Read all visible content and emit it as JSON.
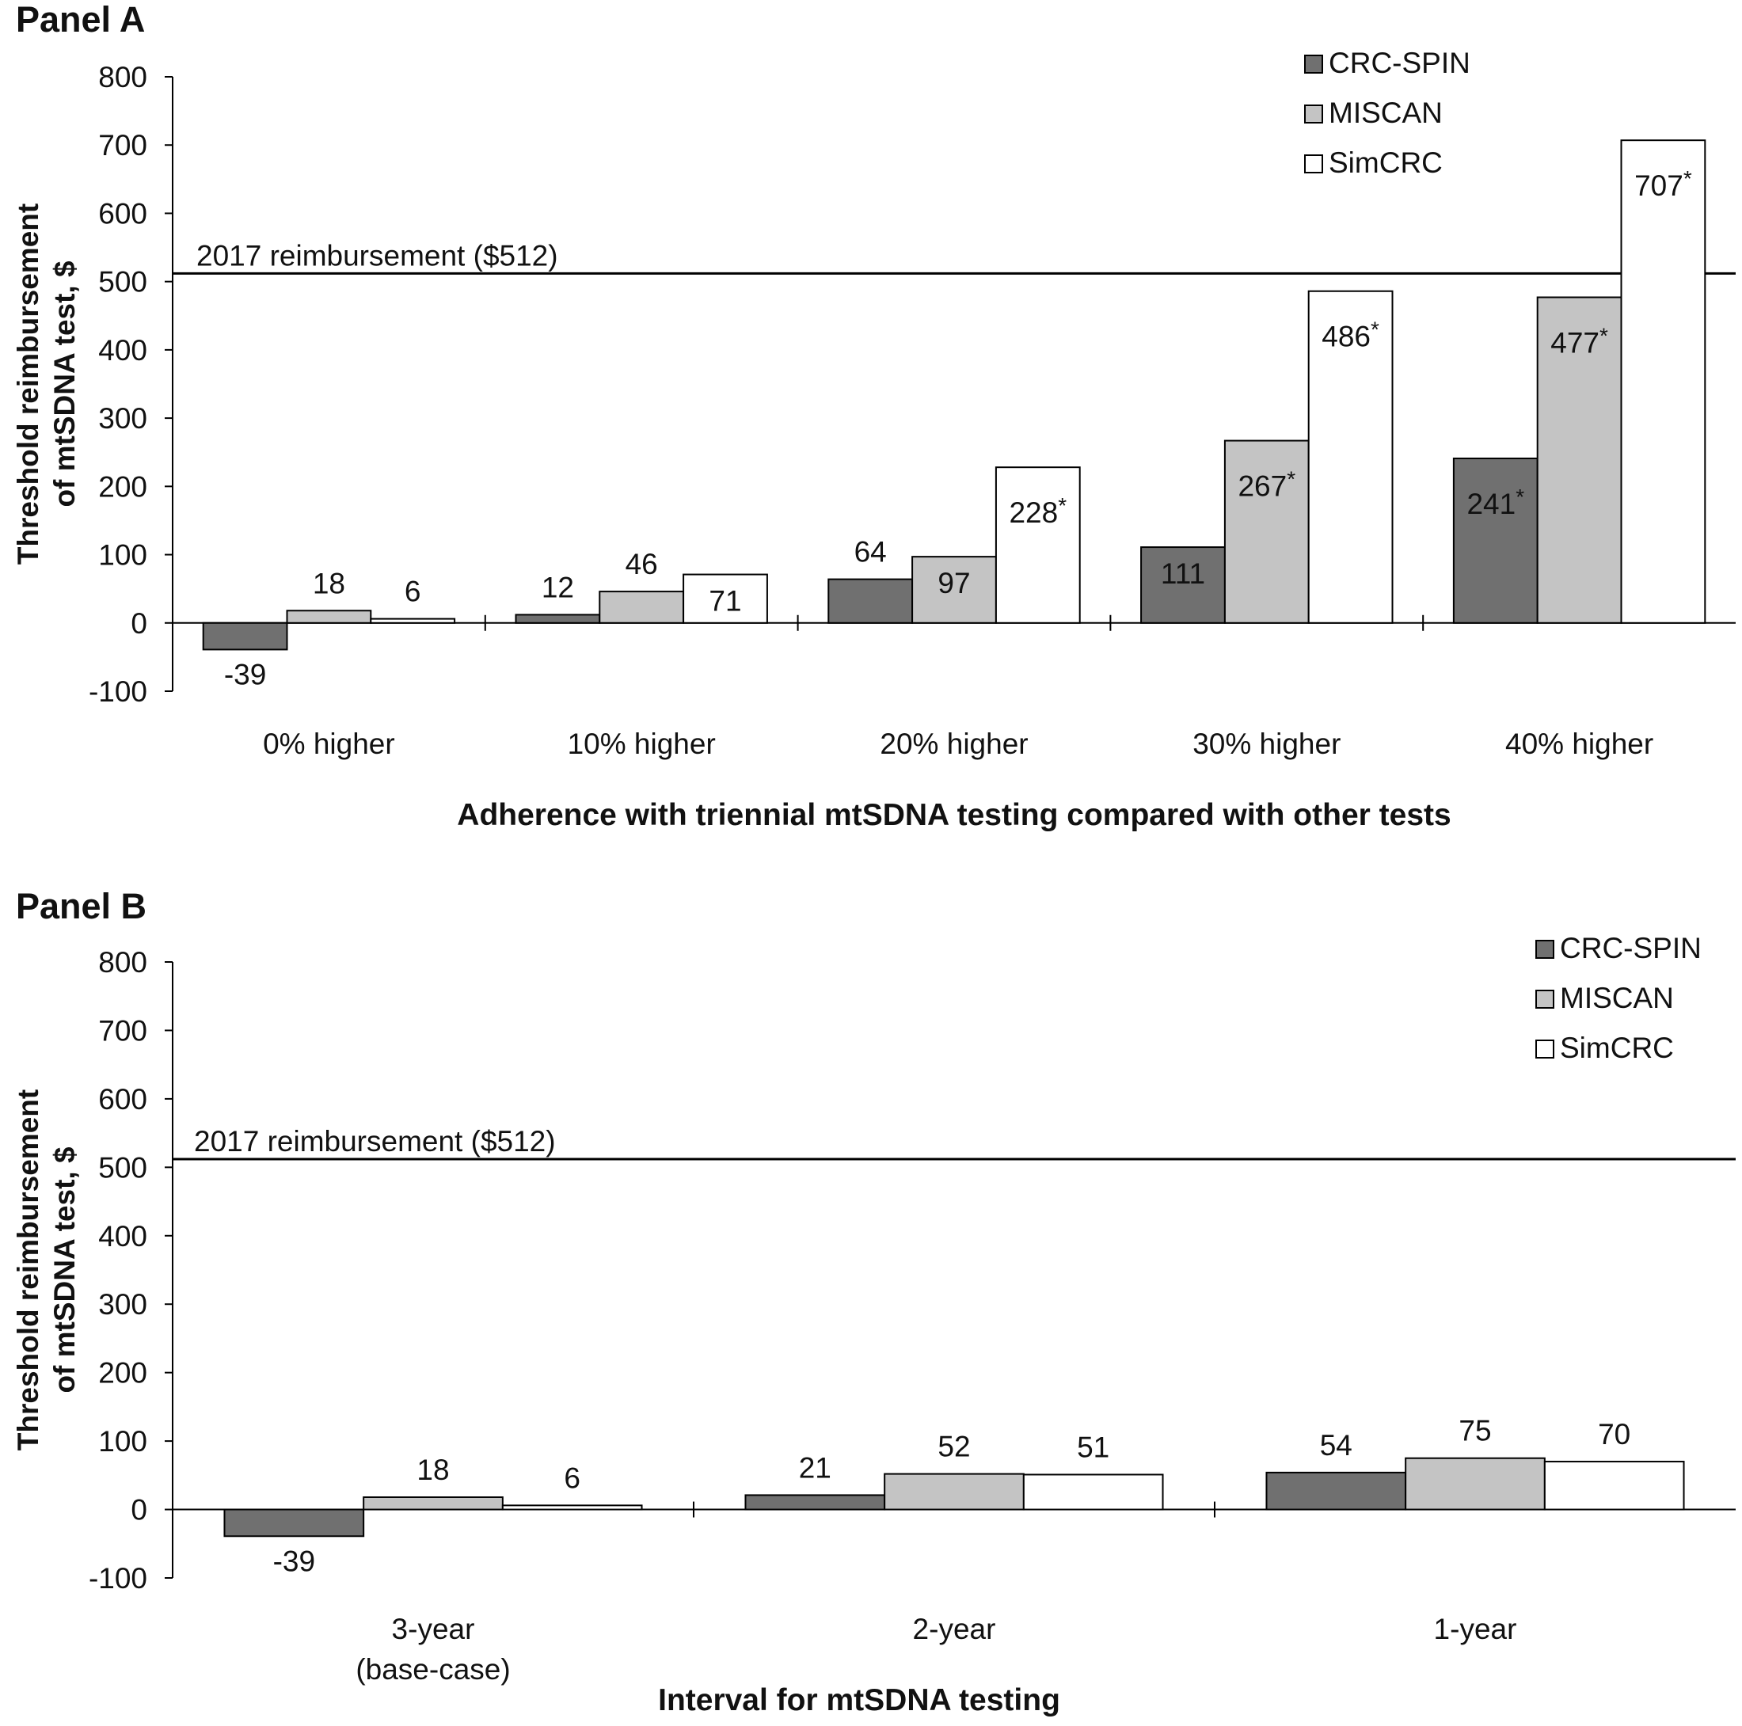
{
  "colors": {
    "CRC-SPIN": "#707070",
    "MISCAN": "#c4c4c4",
    "SimCRC": "#ffffff",
    "stroke": "#000000"
  },
  "chart_data": [
    {
      "panel_title": "Panel A",
      "type": "bar",
      "ylabel_line1": "Threshold reimbursement",
      "ylabel_line2": "of mtSDNA test, $",
      "xlabel": "Adherence with triennial mtSDNA testing compared with other tests",
      "ylim": [
        -100,
        800
      ],
      "yticks": [
        800,
        700,
        600,
        500,
        400,
        300,
        200,
        100,
        0,
        -100
      ],
      "categories": [
        [
          "0% higher"
        ],
        [
          "10% higher"
        ],
        [
          "20% higher"
        ],
        [
          "30% higher"
        ],
        [
          "40% higher"
        ]
      ],
      "legend": [
        "CRC-SPIN",
        "MISCAN",
        "SimCRC"
      ],
      "legend_position": "top-right",
      "reference_line": {
        "value": 512,
        "label": "2017 reimbursement ($512)"
      },
      "series": [
        {
          "name": "CRC-SPIN",
          "values": [
            -39,
            12,
            64,
            111,
            241
          ],
          "labels": [
            "-39",
            "12",
            "64",
            "111",
            "241*"
          ]
        },
        {
          "name": "MISCAN",
          "values": [
            18,
            46,
            97,
            267,
            477
          ],
          "labels": [
            "18",
            "46",
            "97",
            "267*",
            "477*"
          ]
        },
        {
          "name": "SimCRC",
          "values": [
            6,
            71,
            228,
            486,
            707
          ],
          "labels": [
            "6",
            "71",
            "228*",
            "486*",
            "707*"
          ]
        }
      ]
    },
    {
      "panel_title": "Panel B",
      "type": "bar",
      "ylabel_line1": "Threshold reimbursement",
      "ylabel_line2": "of mtSDNA test, $",
      "xlabel": "Interval for mtSDNA testing",
      "ylim": [
        -100,
        800
      ],
      "yticks": [
        800,
        700,
        600,
        500,
        400,
        300,
        200,
        100,
        0,
        -100
      ],
      "categories": [
        [
          "3-year",
          "(base-case)"
        ],
        [
          "2-year"
        ],
        [
          "1-year"
        ]
      ],
      "legend": [
        "CRC-SPIN",
        "MISCAN",
        "SimCRC"
      ],
      "legend_position": "top-right",
      "reference_line": {
        "value": 512,
        "label": "2017 reimbursement ($512)"
      },
      "series": [
        {
          "name": "CRC-SPIN",
          "values": [
            -39,
            21,
            54
          ],
          "labels": [
            "-39",
            "21",
            "54"
          ]
        },
        {
          "name": "MISCAN",
          "values": [
            18,
            52,
            75
          ],
          "labels": [
            "18",
            "52",
            "75"
          ]
        },
        {
          "name": "SimCRC",
          "values": [
            6,
            51,
            70
          ],
          "labels": [
            "6",
            "51",
            "70"
          ]
        }
      ]
    }
  ]
}
